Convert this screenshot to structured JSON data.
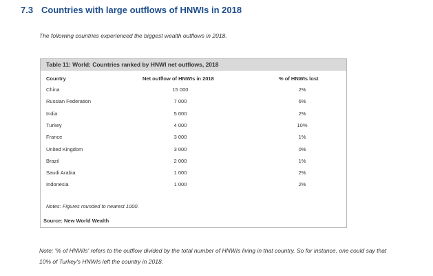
{
  "heading": {
    "number": "7.3",
    "title": "Countries with large outflows of HNWIs in 2018"
  },
  "intro": "The following countries experienced the biggest wealth outflows in 2018.",
  "table": {
    "caption": "Table 11: World: Countries ranked by HNWI net outflows, 2018",
    "columns": [
      "Country",
      "Net outflow of HNWIs in 2018",
      "% of HNWIs lost"
    ],
    "rows": [
      [
        "China",
        "15 000",
        "2%"
      ],
      [
        "Russian Federation",
        "7 000",
        "6%"
      ],
      [
        "India",
        "5 000",
        "2%"
      ],
      [
        "Turkey",
        "4 000",
        "10%"
      ],
      [
        "France",
        "3 000",
        "1%"
      ],
      [
        "United Kingdom",
        "3 000",
        "0%"
      ],
      [
        "Brazil",
        "2 000",
        "1%"
      ],
      [
        "Saudi Arabia",
        "1 000",
        "2%"
      ],
      [
        "Indonesia",
        "1 000",
        "2%"
      ]
    ],
    "notes": "Notes: Figures rounded to nearest 1000.",
    "source": "Source: New World Wealth"
  },
  "footnote": "Note: '% of HNWIs' refers to the outflow divided by the total number of HNWIs living in that country. So for instance, one could say that 10% of Turkey's HNWIs left the country in 2018."
}
